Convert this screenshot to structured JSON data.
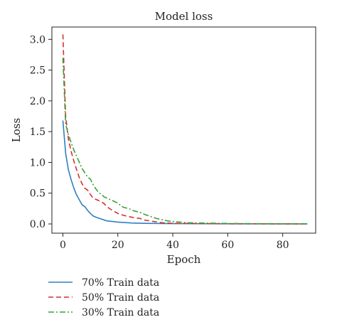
{
  "chart_data": {
    "type": "line",
    "title": "Model loss",
    "xlabel": "Epoch",
    "ylabel": "Loss",
    "xlim": [
      -4,
      92
    ],
    "ylim": [
      -0.15,
      3.2
    ],
    "xticks": [
      0,
      20,
      40,
      60,
      80
    ],
    "yticks": [
      0.0,
      0.5,
      1.0,
      1.5,
      2.0,
      2.5,
      3.0
    ],
    "xtick_labels": [
      "0",
      "20",
      "40",
      "60",
      "80"
    ],
    "ytick_labels": [
      "0.0",
      "0.5",
      "1.0",
      "1.5",
      "2.0",
      "2.5",
      "3.0"
    ],
    "grid": false,
    "legend_position": "below-left",
    "series": [
      {
        "name": "70% Train data",
        "color": "#2f7fc1",
        "dash": "solid",
        "points": [
          [
            0,
            1.68
          ],
          [
            1,
            1.15
          ],
          [
            2,
            0.88
          ],
          [
            3,
            0.72
          ],
          [
            4,
            0.58
          ],
          [
            5,
            0.47
          ],
          [
            6,
            0.39
          ],
          [
            7,
            0.31
          ],
          [
            8,
            0.28
          ],
          [
            9,
            0.22
          ],
          [
            10,
            0.17
          ],
          [
            11,
            0.13
          ],
          [
            12,
            0.11
          ],
          [
            14,
            0.08
          ],
          [
            16,
            0.05
          ],
          [
            18,
            0.04
          ],
          [
            20,
            0.03
          ],
          [
            25,
            0.015
          ],
          [
            30,
            0.01
          ],
          [
            40,
            0.005
          ],
          [
            60,
            0.002
          ],
          [
            89,
            0.0
          ]
        ]
      },
      {
        "name": "50% Train data",
        "color": "#d62f2f",
        "dash": "dashed",
        "points": [
          [
            0,
            3.08
          ],
          [
            1,
            1.75
          ],
          [
            2,
            1.38
          ],
          [
            3,
            1.18
          ],
          [
            4,
            1.02
          ],
          [
            5,
            0.88
          ],
          [
            6,
            0.75
          ],
          [
            7,
            0.65
          ],
          [
            8,
            0.58
          ],
          [
            9,
            0.55
          ],
          [
            10,
            0.48
          ],
          [
            11,
            0.42
          ],
          [
            12,
            0.4
          ],
          [
            13,
            0.38
          ],
          [
            14,
            0.36
          ],
          [
            15,
            0.33
          ],
          [
            16,
            0.28
          ],
          [
            17,
            0.25
          ],
          [
            18,
            0.22
          ],
          [
            20,
            0.17
          ],
          [
            22,
            0.14
          ],
          [
            24,
            0.12
          ],
          [
            26,
            0.1
          ],
          [
            28,
            0.09
          ],
          [
            30,
            0.06
          ],
          [
            33,
            0.04
          ],
          [
            36,
            0.02
          ],
          [
            40,
            0.01
          ],
          [
            50,
            0.005
          ],
          [
            60,
            0.003
          ],
          [
            89,
            0.0
          ]
        ]
      },
      {
        "name": "30% Train data",
        "color": "#3aa13a",
        "dash": "dashdot",
        "points": [
          [
            0,
            2.7
          ],
          [
            1,
            1.62
          ],
          [
            2,
            1.45
          ],
          [
            3,
            1.32
          ],
          [
            4,
            1.2
          ],
          [
            5,
            1.1
          ],
          [
            6,
            1.0
          ],
          [
            7,
            0.9
          ],
          [
            8,
            0.83
          ],
          [
            9,
            0.76
          ],
          [
            10,
            0.73
          ],
          [
            11,
            0.64
          ],
          [
            12,
            0.57
          ],
          [
            13,
            0.51
          ],
          [
            14,
            0.48
          ],
          [
            15,
            0.44
          ],
          [
            16,
            0.42
          ],
          [
            17,
            0.4
          ],
          [
            18,
            0.38
          ],
          [
            19,
            0.36
          ],
          [
            20,
            0.34
          ],
          [
            21,
            0.3
          ],
          [
            22,
            0.27
          ],
          [
            24,
            0.25
          ],
          [
            26,
            0.21
          ],
          [
            28,
            0.19
          ],
          [
            30,
            0.15
          ],
          [
            32,
            0.12
          ],
          [
            34,
            0.09
          ],
          [
            36,
            0.07
          ],
          [
            38,
            0.05
          ],
          [
            40,
            0.04
          ],
          [
            45,
            0.02
          ],
          [
            50,
            0.015
          ],
          [
            60,
            0.008
          ],
          [
            70,
            0.004
          ],
          [
            89,
            0.002
          ]
        ]
      }
    ]
  }
}
